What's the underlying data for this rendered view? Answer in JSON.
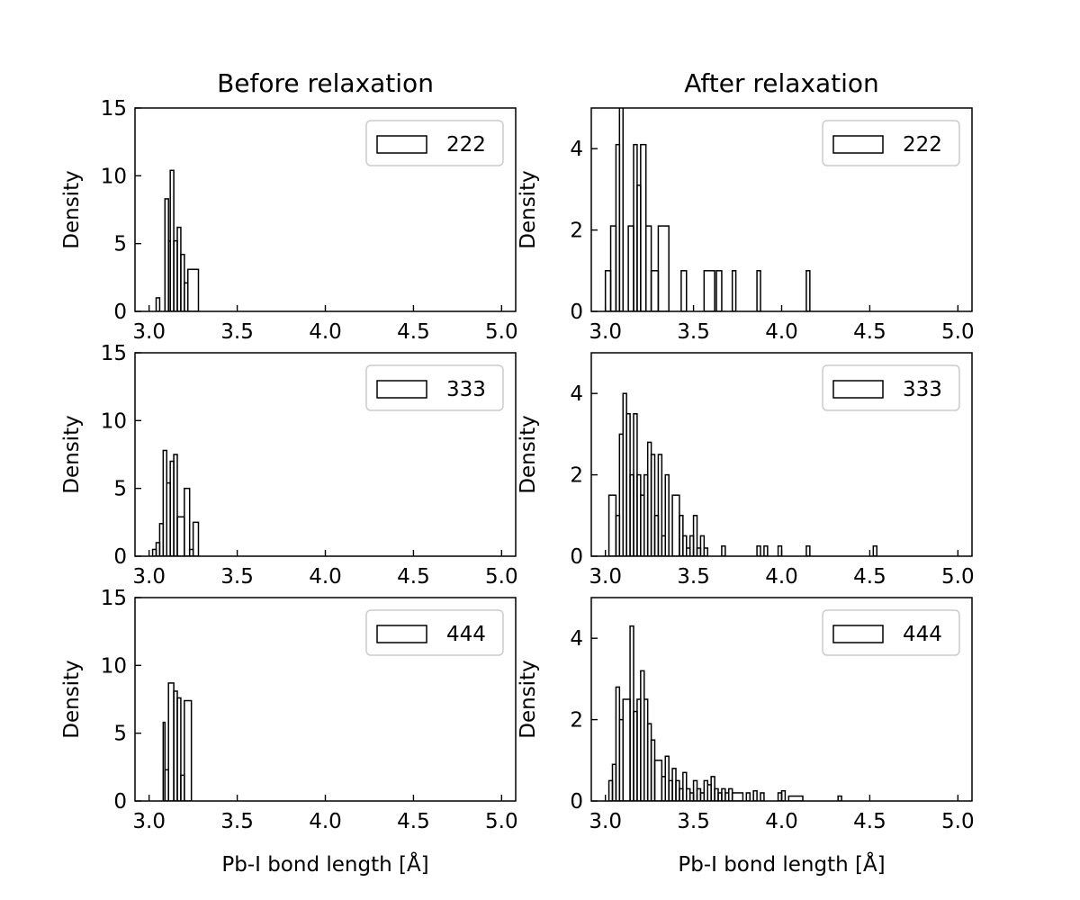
{
  "chart_data": [
    {
      "type": "histogram",
      "panel": "top-left",
      "title": "Before relaxation",
      "xlabel": "",
      "ylabel": "Density",
      "xlim": [
        2.92,
        5.08
      ],
      "ylim": [
        0,
        15
      ],
      "xticks": [
        "3.0",
        "3.5",
        "4.0",
        "4.5",
        "5.0"
      ],
      "yticks": [
        "0",
        "5",
        "10",
        "15"
      ],
      "legend": {
        "label": "222",
        "placement": "top-right"
      },
      "bins": [
        {
          "x0": 3.04,
          "x1": 3.06,
          "y": 1.0
        },
        {
          "x0": 3.06,
          "x1": 3.09,
          "y": 0
        },
        {
          "x0": 3.09,
          "x1": 3.11,
          "y": 8.3
        },
        {
          "x0": 3.11,
          "x1": 3.12,
          "y": 5.2
        },
        {
          "x0": 3.12,
          "x1": 3.14,
          "y": 10.4
        },
        {
          "x0": 3.14,
          "x1": 3.16,
          "y": 5.2
        },
        {
          "x0": 3.16,
          "x1": 3.18,
          "y": 6.2
        },
        {
          "x0": 3.18,
          "x1": 3.2,
          "y": 4.2
        },
        {
          "x0": 3.2,
          "x1": 3.22,
          "y": 2.1
        },
        {
          "x0": 3.22,
          "x1": 3.28,
          "y": 3.1
        }
      ]
    },
    {
      "type": "histogram",
      "panel": "top-right",
      "title": "After relaxation",
      "xlabel": "",
      "ylabel": "Density",
      "xlim": [
        2.92,
        5.08
      ],
      "ylim": [
        0,
        5
      ],
      "xticks": [
        "3.0",
        "3.5",
        "4.0",
        "4.5",
        "5.0"
      ],
      "yticks": [
        "0",
        "2",
        "4"
      ],
      "legend": {
        "label": "222",
        "placement": "top-right"
      },
      "bins": [
        {
          "x0": 3.0,
          "x1": 3.03,
          "y": 1.0
        },
        {
          "x0": 3.03,
          "x1": 3.06,
          "y": 2.1
        },
        {
          "x0": 3.06,
          "x1": 3.08,
          "y": 4.1
        },
        {
          "x0": 3.08,
          "x1": 3.1,
          "y": 5.2
        },
        {
          "x0": 3.1,
          "x1": 3.13,
          "y": 0
        },
        {
          "x0": 3.13,
          "x1": 3.16,
          "y": 2.1
        },
        {
          "x0": 3.16,
          "x1": 3.18,
          "y": 4.1
        },
        {
          "x0": 3.18,
          "x1": 3.2,
          "y": 3.1
        },
        {
          "x0": 3.2,
          "x1": 3.23,
          "y": 4.1
        },
        {
          "x0": 3.23,
          "x1": 3.26,
          "y": 2.1
        },
        {
          "x0": 3.26,
          "x1": 3.3,
          "y": 1.0
        },
        {
          "x0": 3.3,
          "x1": 3.36,
          "y": 2.1
        },
        {
          "x0": 3.36,
          "x1": 3.43,
          "y": 0
        },
        {
          "x0": 3.43,
          "x1": 3.46,
          "y": 1.0
        },
        {
          "x0": 3.46,
          "x1": 3.56,
          "y": 0
        },
        {
          "x0": 3.56,
          "x1": 3.62,
          "y": 1.0
        },
        {
          "x0": 3.62,
          "x1": 3.63,
          "y": 0
        },
        {
          "x0": 3.63,
          "x1": 3.66,
          "y": 1.0
        },
        {
          "x0": 3.66,
          "x1": 3.72,
          "y": 0
        },
        {
          "x0": 3.72,
          "x1": 3.74,
          "y": 1.0
        },
        {
          "x0": 3.74,
          "x1": 3.86,
          "y": 0
        },
        {
          "x0": 3.86,
          "x1": 3.88,
          "y": 1.0
        },
        {
          "x0": 3.88,
          "x1": 4.14,
          "y": 0
        },
        {
          "x0": 4.14,
          "x1": 4.16,
          "y": 1.0
        }
      ]
    },
    {
      "type": "histogram",
      "panel": "middle-left",
      "title": "",
      "xlabel": "",
      "ylabel": "Density",
      "xlim": [
        2.92,
        5.08
      ],
      "ylim": [
        0,
        15
      ],
      "xticks": [
        "3.0",
        "3.5",
        "4.0",
        "4.5",
        "5.0"
      ],
      "yticks": [
        "0",
        "5",
        "10",
        "15"
      ],
      "legend": {
        "label": "333",
        "placement": "top-right"
      },
      "bins": [
        {
          "x0": 3.02,
          "x1": 3.04,
          "y": 0.5
        },
        {
          "x0": 3.04,
          "x1": 3.06,
          "y": 1.0
        },
        {
          "x0": 3.06,
          "x1": 3.08,
          "y": 2.4
        },
        {
          "x0": 3.08,
          "x1": 3.1,
          "y": 7.8
        },
        {
          "x0": 3.1,
          "x1": 3.12,
          "y": 5.4
        },
        {
          "x0": 3.12,
          "x1": 3.14,
          "y": 7.0
        },
        {
          "x0": 3.14,
          "x1": 3.16,
          "y": 7.5
        },
        {
          "x0": 3.16,
          "x1": 3.2,
          "y": 2.9
        },
        {
          "x0": 3.2,
          "x1": 3.23,
          "y": 5.0
        },
        {
          "x0": 3.23,
          "x1": 3.25,
          "y": 0.5
        },
        {
          "x0": 3.25,
          "x1": 3.28,
          "y": 2.5
        }
      ]
    },
    {
      "type": "histogram",
      "panel": "middle-right",
      "title": "",
      "xlabel": "",
      "ylabel": "Density",
      "xlim": [
        2.92,
        5.08
      ],
      "ylim": [
        0,
        5
      ],
      "xticks": [
        "3.0",
        "3.5",
        "4.0",
        "4.5",
        "5.0"
      ],
      "yticks": [
        "0",
        "2",
        "4"
      ],
      "legend": {
        "label": "333",
        "placement": "top-right"
      },
      "bins": [
        {
          "x0": 3.02,
          "x1": 3.06,
          "y": 1.5
        },
        {
          "x0": 3.06,
          "x1": 3.08,
          "y": 1.0
        },
        {
          "x0": 3.08,
          "x1": 3.1,
          "y": 3.0
        },
        {
          "x0": 3.1,
          "x1": 3.12,
          "y": 4.0
        },
        {
          "x0": 3.12,
          "x1": 3.14,
          "y": 3.5
        },
        {
          "x0": 3.14,
          "x1": 3.16,
          "y": 2.0
        },
        {
          "x0": 3.16,
          "x1": 3.18,
          "y": 3.5
        },
        {
          "x0": 3.18,
          "x1": 3.2,
          "y": 2.0
        },
        {
          "x0": 3.2,
          "x1": 3.22,
          "y": 1.5
        },
        {
          "x0": 3.22,
          "x1": 3.24,
          "y": 2.0
        },
        {
          "x0": 3.24,
          "x1": 3.26,
          "y": 2.8
        },
        {
          "x0": 3.26,
          "x1": 3.28,
          "y": 2.5
        },
        {
          "x0": 3.28,
          "x1": 3.3,
          "y": 1.0
        },
        {
          "x0": 3.3,
          "x1": 3.32,
          "y": 2.5
        },
        {
          "x0": 3.32,
          "x1": 3.34,
          "y": 0.5
        },
        {
          "x0": 3.34,
          "x1": 3.36,
          "y": 2.0
        },
        {
          "x0": 3.36,
          "x1": 3.38,
          "y": 0
        },
        {
          "x0": 3.38,
          "x1": 3.42,
          "y": 1.5
        },
        {
          "x0": 3.42,
          "x1": 3.44,
          "y": 1.0
        },
        {
          "x0": 3.44,
          "x1": 3.46,
          "y": 0.5
        },
        {
          "x0": 3.46,
          "x1": 3.48,
          "y": 0.2
        },
        {
          "x0": 3.48,
          "x1": 3.5,
          "y": 0.5
        },
        {
          "x0": 3.5,
          "x1": 3.52,
          "y": 1.0
        },
        {
          "x0": 3.52,
          "x1": 3.54,
          "y": 0.2
        },
        {
          "x0": 3.54,
          "x1": 3.56,
          "y": 0.5
        },
        {
          "x0": 3.56,
          "x1": 3.58,
          "y": 0.2
        },
        {
          "x0": 3.58,
          "x1": 3.66,
          "y": 0
        },
        {
          "x0": 3.66,
          "x1": 3.68,
          "y": 0.25
        },
        {
          "x0": 3.68,
          "x1": 3.86,
          "y": 0
        },
        {
          "x0": 3.86,
          "x1": 3.88,
          "y": 0.25
        },
        {
          "x0": 3.88,
          "x1": 3.9,
          "y": 0
        },
        {
          "x0": 3.9,
          "x1": 3.92,
          "y": 0.25
        },
        {
          "x0": 3.92,
          "x1": 3.98,
          "y": 0
        },
        {
          "x0": 3.98,
          "x1": 4.0,
          "y": 0.25
        },
        {
          "x0": 4.0,
          "x1": 4.14,
          "y": 0
        },
        {
          "x0": 4.14,
          "x1": 4.16,
          "y": 0.25
        },
        {
          "x0": 4.16,
          "x1": 4.52,
          "y": 0
        },
        {
          "x0": 4.52,
          "x1": 4.54,
          "y": 0.25
        }
      ]
    },
    {
      "type": "histogram",
      "panel": "bottom-left",
      "title": "",
      "xlabel": "Pb-I bond length [Å]",
      "ylabel": "Density",
      "xlim": [
        2.92,
        5.08
      ],
      "ylim": [
        0,
        15
      ],
      "xticks": [
        "3.0",
        "3.5",
        "4.0",
        "4.5",
        "5.0"
      ],
      "yticks": [
        "0",
        "5",
        "10",
        "15"
      ],
      "legend": {
        "label": "444",
        "placement": "top-right"
      },
      "bins": [
        {
          "x0": 3.08,
          "x1": 3.09,
          "y": 5.8
        },
        {
          "x0": 3.09,
          "x1": 3.11,
          "y": 2.3
        },
        {
          "x0": 3.11,
          "x1": 3.14,
          "y": 8.7
        },
        {
          "x0": 3.14,
          "x1": 3.16,
          "y": 8.1
        },
        {
          "x0": 3.16,
          "x1": 3.18,
          "y": 7.6
        },
        {
          "x0": 3.18,
          "x1": 3.2,
          "y": 1.9
        },
        {
          "x0": 3.2,
          "x1": 3.24,
          "y": 7.4
        }
      ]
    },
    {
      "type": "histogram",
      "panel": "bottom-right",
      "title": "",
      "xlabel": "Pb-I bond length [Å]",
      "ylabel": "Density",
      "xlim": [
        2.92,
        5.08
      ],
      "ylim": [
        0,
        5
      ],
      "xticks": [
        "3.0",
        "3.5",
        "4.0",
        "4.5",
        "5.0"
      ],
      "yticks": [
        "0",
        "2",
        "4"
      ],
      "legend": {
        "label": "444",
        "placement": "top-right"
      },
      "bins": [
        {
          "x0": 3.02,
          "x1": 3.04,
          "y": 0.5
        },
        {
          "x0": 3.04,
          "x1": 3.06,
          "y": 0.9
        },
        {
          "x0": 3.06,
          "x1": 3.08,
          "y": 2.8
        },
        {
          "x0": 3.08,
          "x1": 3.1,
          "y": 2.0
        },
        {
          "x0": 3.1,
          "x1": 3.14,
          "y": 2.5
        },
        {
          "x0": 3.14,
          "x1": 3.16,
          "y": 4.3
        },
        {
          "x0": 3.16,
          "x1": 3.18,
          "y": 2.2
        },
        {
          "x0": 3.18,
          "x1": 3.2,
          "y": 2.5
        },
        {
          "x0": 3.2,
          "x1": 3.22,
          "y": 3.2
        },
        {
          "x0": 3.22,
          "x1": 3.24,
          "y": 2.5
        },
        {
          "x0": 3.24,
          "x1": 3.26,
          "y": 1.9
        },
        {
          "x0": 3.26,
          "x1": 3.28,
          "y": 1.5
        },
        {
          "x0": 3.28,
          "x1": 3.32,
          "y": 1.0
        },
        {
          "x0": 3.32,
          "x1": 3.34,
          "y": 0.6
        },
        {
          "x0": 3.34,
          "x1": 3.36,
          "y": 1.1
        },
        {
          "x0": 3.36,
          "x1": 3.38,
          "y": 0.5
        },
        {
          "x0": 3.38,
          "x1": 3.4,
          "y": 0.8
        },
        {
          "x0": 3.4,
          "x1": 3.42,
          "y": 0.5
        },
        {
          "x0": 3.42,
          "x1": 3.44,
          "y": 0.3
        },
        {
          "x0": 3.44,
          "x1": 3.46,
          "y": 0.7
        },
        {
          "x0": 3.46,
          "x1": 3.48,
          "y": 0.3
        },
        {
          "x0": 3.48,
          "x1": 3.5,
          "y": 0.2
        },
        {
          "x0": 3.5,
          "x1": 3.52,
          "y": 0.5
        },
        {
          "x0": 3.52,
          "x1": 3.54,
          "y": 0.3
        },
        {
          "x0": 3.54,
          "x1": 3.56,
          "y": 0.2
        },
        {
          "x0": 3.56,
          "x1": 3.58,
          "y": 0.5
        },
        {
          "x0": 3.58,
          "x1": 3.6,
          "y": 0.4
        },
        {
          "x0": 3.6,
          "x1": 3.62,
          "y": 0.6
        },
        {
          "x0": 3.62,
          "x1": 3.64,
          "y": 0.3
        },
        {
          "x0": 3.64,
          "x1": 3.66,
          "y": 0.2
        },
        {
          "x0": 3.66,
          "x1": 3.68,
          "y": 0.3
        },
        {
          "x0": 3.68,
          "x1": 3.7,
          "y": 0.2
        },
        {
          "x0": 3.7,
          "x1": 3.72,
          "y": 0.3
        },
        {
          "x0": 3.72,
          "x1": 3.78,
          "y": 0.2
        },
        {
          "x0": 3.78,
          "x1": 3.8,
          "y": 0
        },
        {
          "x0": 3.8,
          "x1": 3.82,
          "y": 0.2
        },
        {
          "x0": 3.82,
          "x1": 3.84,
          "y": 0
        },
        {
          "x0": 3.84,
          "x1": 3.86,
          "y": 0.25
        },
        {
          "x0": 3.86,
          "x1": 3.88,
          "y": 0
        },
        {
          "x0": 3.88,
          "x1": 3.9,
          "y": 0.2
        },
        {
          "x0": 3.9,
          "x1": 3.98,
          "y": 0
        },
        {
          "x0": 3.98,
          "x1": 4.0,
          "y": 0.2
        },
        {
          "x0": 4.0,
          "x1": 4.02,
          "y": 0.25
        },
        {
          "x0": 4.02,
          "x1": 4.04,
          "y": 0
        },
        {
          "x0": 4.04,
          "x1": 4.12,
          "y": 0.12
        },
        {
          "x0": 4.12,
          "x1": 4.32,
          "y": 0
        },
        {
          "x0": 4.32,
          "x1": 4.34,
          "y": 0.12
        }
      ]
    }
  ]
}
